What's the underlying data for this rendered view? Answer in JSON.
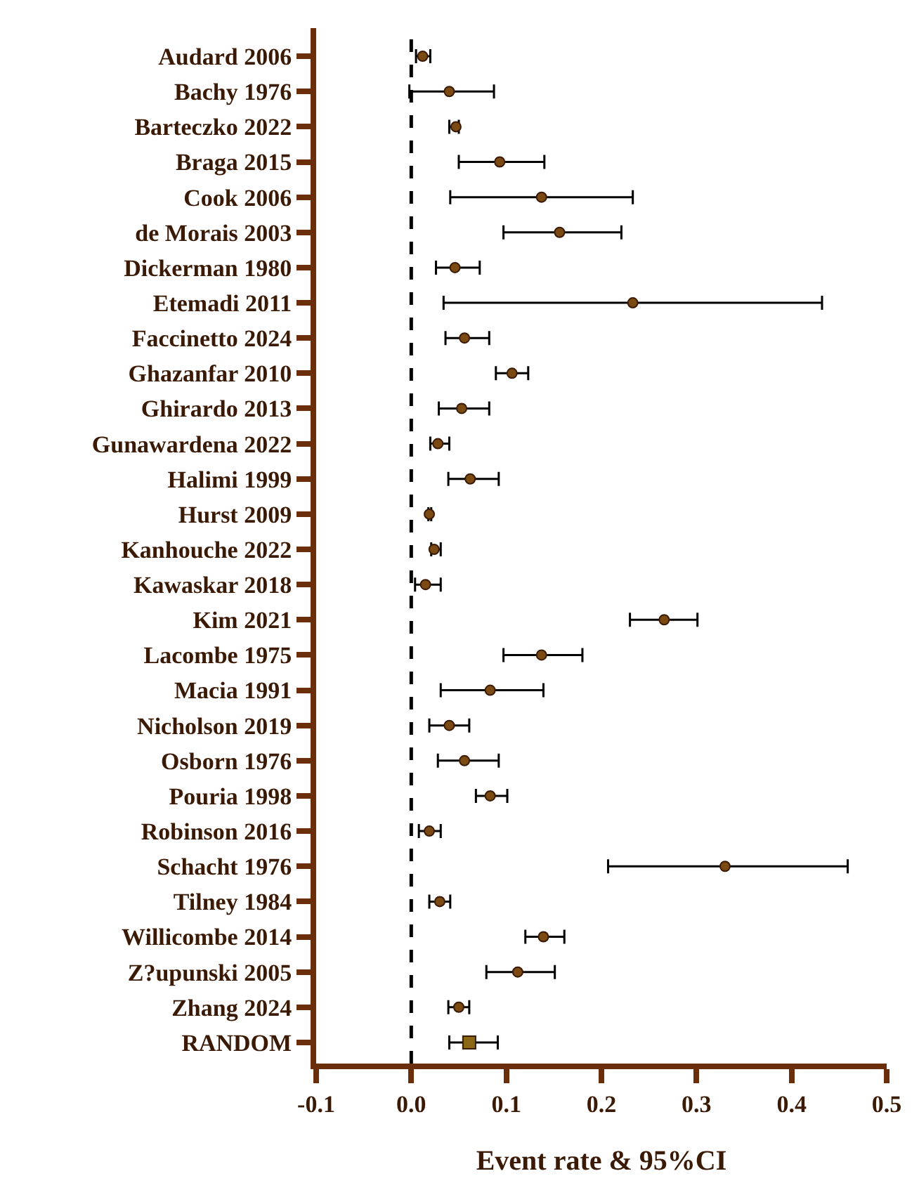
{
  "chart_data": {
    "type": "scatter",
    "orientation": "horizontal",
    "xlabel": "Event rate & 95%CI",
    "categories": [
      "Audard 2006",
      "Bachy 1976",
      "Barteczko 2022",
      "Braga 2015",
      "Cook 2006",
      "de Morais 2003",
      "Dickerman 1980",
      "Etemadi 2011",
      "Faccinetto 2024",
      "Ghazanfar 2010",
      "Ghirardo 2013",
      "Gunawardena 2022",
      "Halimi 1999",
      "Hurst 2009",
      "Kanhouche 2022",
      "Kawaskar 2018",
      "Kim 2021",
      "Lacombe 1975",
      "Macia 1991",
      "Nicholson 2019",
      "Osborn 1976",
      "Pouria 1998",
      "Robinson 2016",
      "Schacht 1976",
      "Tilney 1984",
      "Willicombe 2014",
      "Z?upunski 2005",
      "Zhang 2024",
      "RANDOM"
    ],
    "series": [
      {
        "color": "#7b4a12",
        "marker": "circle",
        "values": [
          0.012,
          0.04,
          0.047,
          0.093,
          0.137,
          0.156,
          0.046,
          0.233,
          0.056,
          0.106,
          0.053,
          0.028,
          0.062,
          0.019,
          0.024,
          0.015,
          0.266,
          0.137,
          0.083,
          0.04,
          0.056,
          0.083,
          0.019,
          0.33,
          0.03,
          0.139,
          0.112,
          0.05,
          null
        ],
        "errors": [
          [
            0.005,
            0.02
          ],
          [
            -0.002,
            0.087
          ],
          [
            0.04,
            0.05
          ],
          [
            0.05,
            0.14
          ],
          [
            0.041,
            0.233
          ],
          [
            0.097,
            0.221
          ],
          [
            0.026,
            0.072
          ],
          [
            0.034,
            0.432
          ],
          [
            0.036,
            0.082
          ],
          [
            0.089,
            0.123
          ],
          [
            0.029,
            0.082
          ],
          [
            0.02,
            0.04
          ],
          [
            0.039,
            0.092
          ],
          [
            0.018,
            0.021
          ],
          [
            0.021,
            0.031
          ],
          [
            0.004,
            0.031
          ],
          [
            0.23,
            0.301
          ],
          [
            0.097,
            0.18
          ],
          [
            0.031,
            0.139
          ],
          [
            0.019,
            0.061
          ],
          [
            0.028,
            0.092
          ],
          [
            0.068,
            0.101
          ],
          [
            0.008,
            0.031
          ],
          [
            0.207,
            0.459
          ],
          [
            0.019,
            0.041
          ],
          [
            0.12,
            0.161
          ],
          [
            0.079,
            0.151
          ],
          [
            0.039,
            0.061
          ],
          null
        ]
      },
      {
        "color": "#8b6914",
        "marker": "square",
        "values": [
          null,
          null,
          null,
          null,
          null,
          null,
          null,
          null,
          null,
          null,
          null,
          null,
          null,
          null,
          null,
          null,
          null,
          null,
          null,
          null,
          null,
          null,
          null,
          null,
          null,
          null,
          null,
          null,
          0.061
        ],
        "errors": [
          null,
          null,
          null,
          null,
          null,
          null,
          null,
          null,
          null,
          null,
          null,
          null,
          null,
          null,
          null,
          null,
          null,
          null,
          null,
          null,
          null,
          null,
          null,
          null,
          null,
          null,
          null,
          null,
          [
            0.04,
            0.091
          ]
        ]
      }
    ],
    "xlim": [
      -0.1,
      0.5
    ],
    "xticks": [
      -0.1,
      {
        "value": 0,
        "label": "0.0"
      },
      0.1,
      0.2,
      0.3,
      0.4,
      0.5
    ],
    "ref_lines": [
      {
        "axis": "x",
        "value": 0,
        "color": "#000000",
        "line_style": "dashed"
      }
    ],
    "grid": false
  }
}
